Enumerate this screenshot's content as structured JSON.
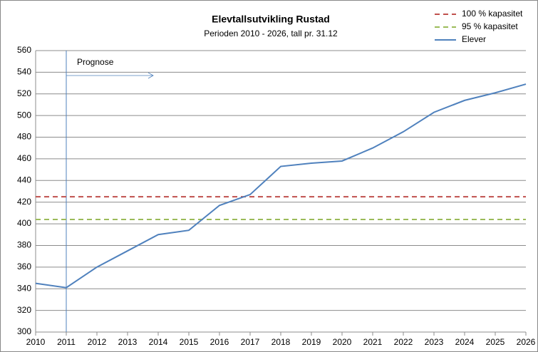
{
  "chart_data": {
    "type": "line",
    "title": "Elevtallsutvikling Rustad",
    "subtitle": "Perioden 2010 - 2026, tall pr. 31.12",
    "x": [
      2010,
      2011,
      2012,
      2013,
      2014,
      2015,
      2016,
      2017,
      2018,
      2019,
      2020,
      2021,
      2022,
      2023,
      2024,
      2025,
      2026
    ],
    "xlim": [
      2010,
      2026
    ],
    "xticks": [
      2010,
      2011,
      2012,
      2013,
      2014,
      2015,
      2016,
      2017,
      2018,
      2019,
      2020,
      2021,
      2022,
      2023,
      2024,
      2025,
      2026
    ],
    "ylim": [
      300,
      560
    ],
    "yticks": [
      300,
      320,
      340,
      360,
      380,
      400,
      420,
      440,
      460,
      480,
      500,
      520,
      540,
      560
    ],
    "grid": true,
    "legend": "top-right",
    "annotation": {
      "text": "Prognose",
      "x": 2011
    },
    "series": [
      {
        "name": "100 % kapasitet",
        "color": "#c0504d",
        "dashed": true,
        "values": [
          425,
          425,
          425,
          425,
          425,
          425,
          425,
          425,
          425,
          425,
          425,
          425,
          425,
          425,
          425,
          425,
          425
        ]
      },
      {
        "name": "95 % kapasitet",
        "color": "#9bbb59",
        "dashed": true,
        "values": [
          404,
          404,
          404,
          404,
          404,
          404,
          404,
          404,
          404,
          404,
          404,
          404,
          404,
          404,
          404,
          404,
          404
        ]
      },
      {
        "name": "Elever",
        "color": "#4f81bd",
        "dashed": false,
        "values": [
          345,
          341,
          360,
          375,
          390,
          394,
          417,
          427,
          453,
          456,
          458,
          470,
          485,
          503,
          514,
          521,
          529
        ]
      }
    ]
  }
}
